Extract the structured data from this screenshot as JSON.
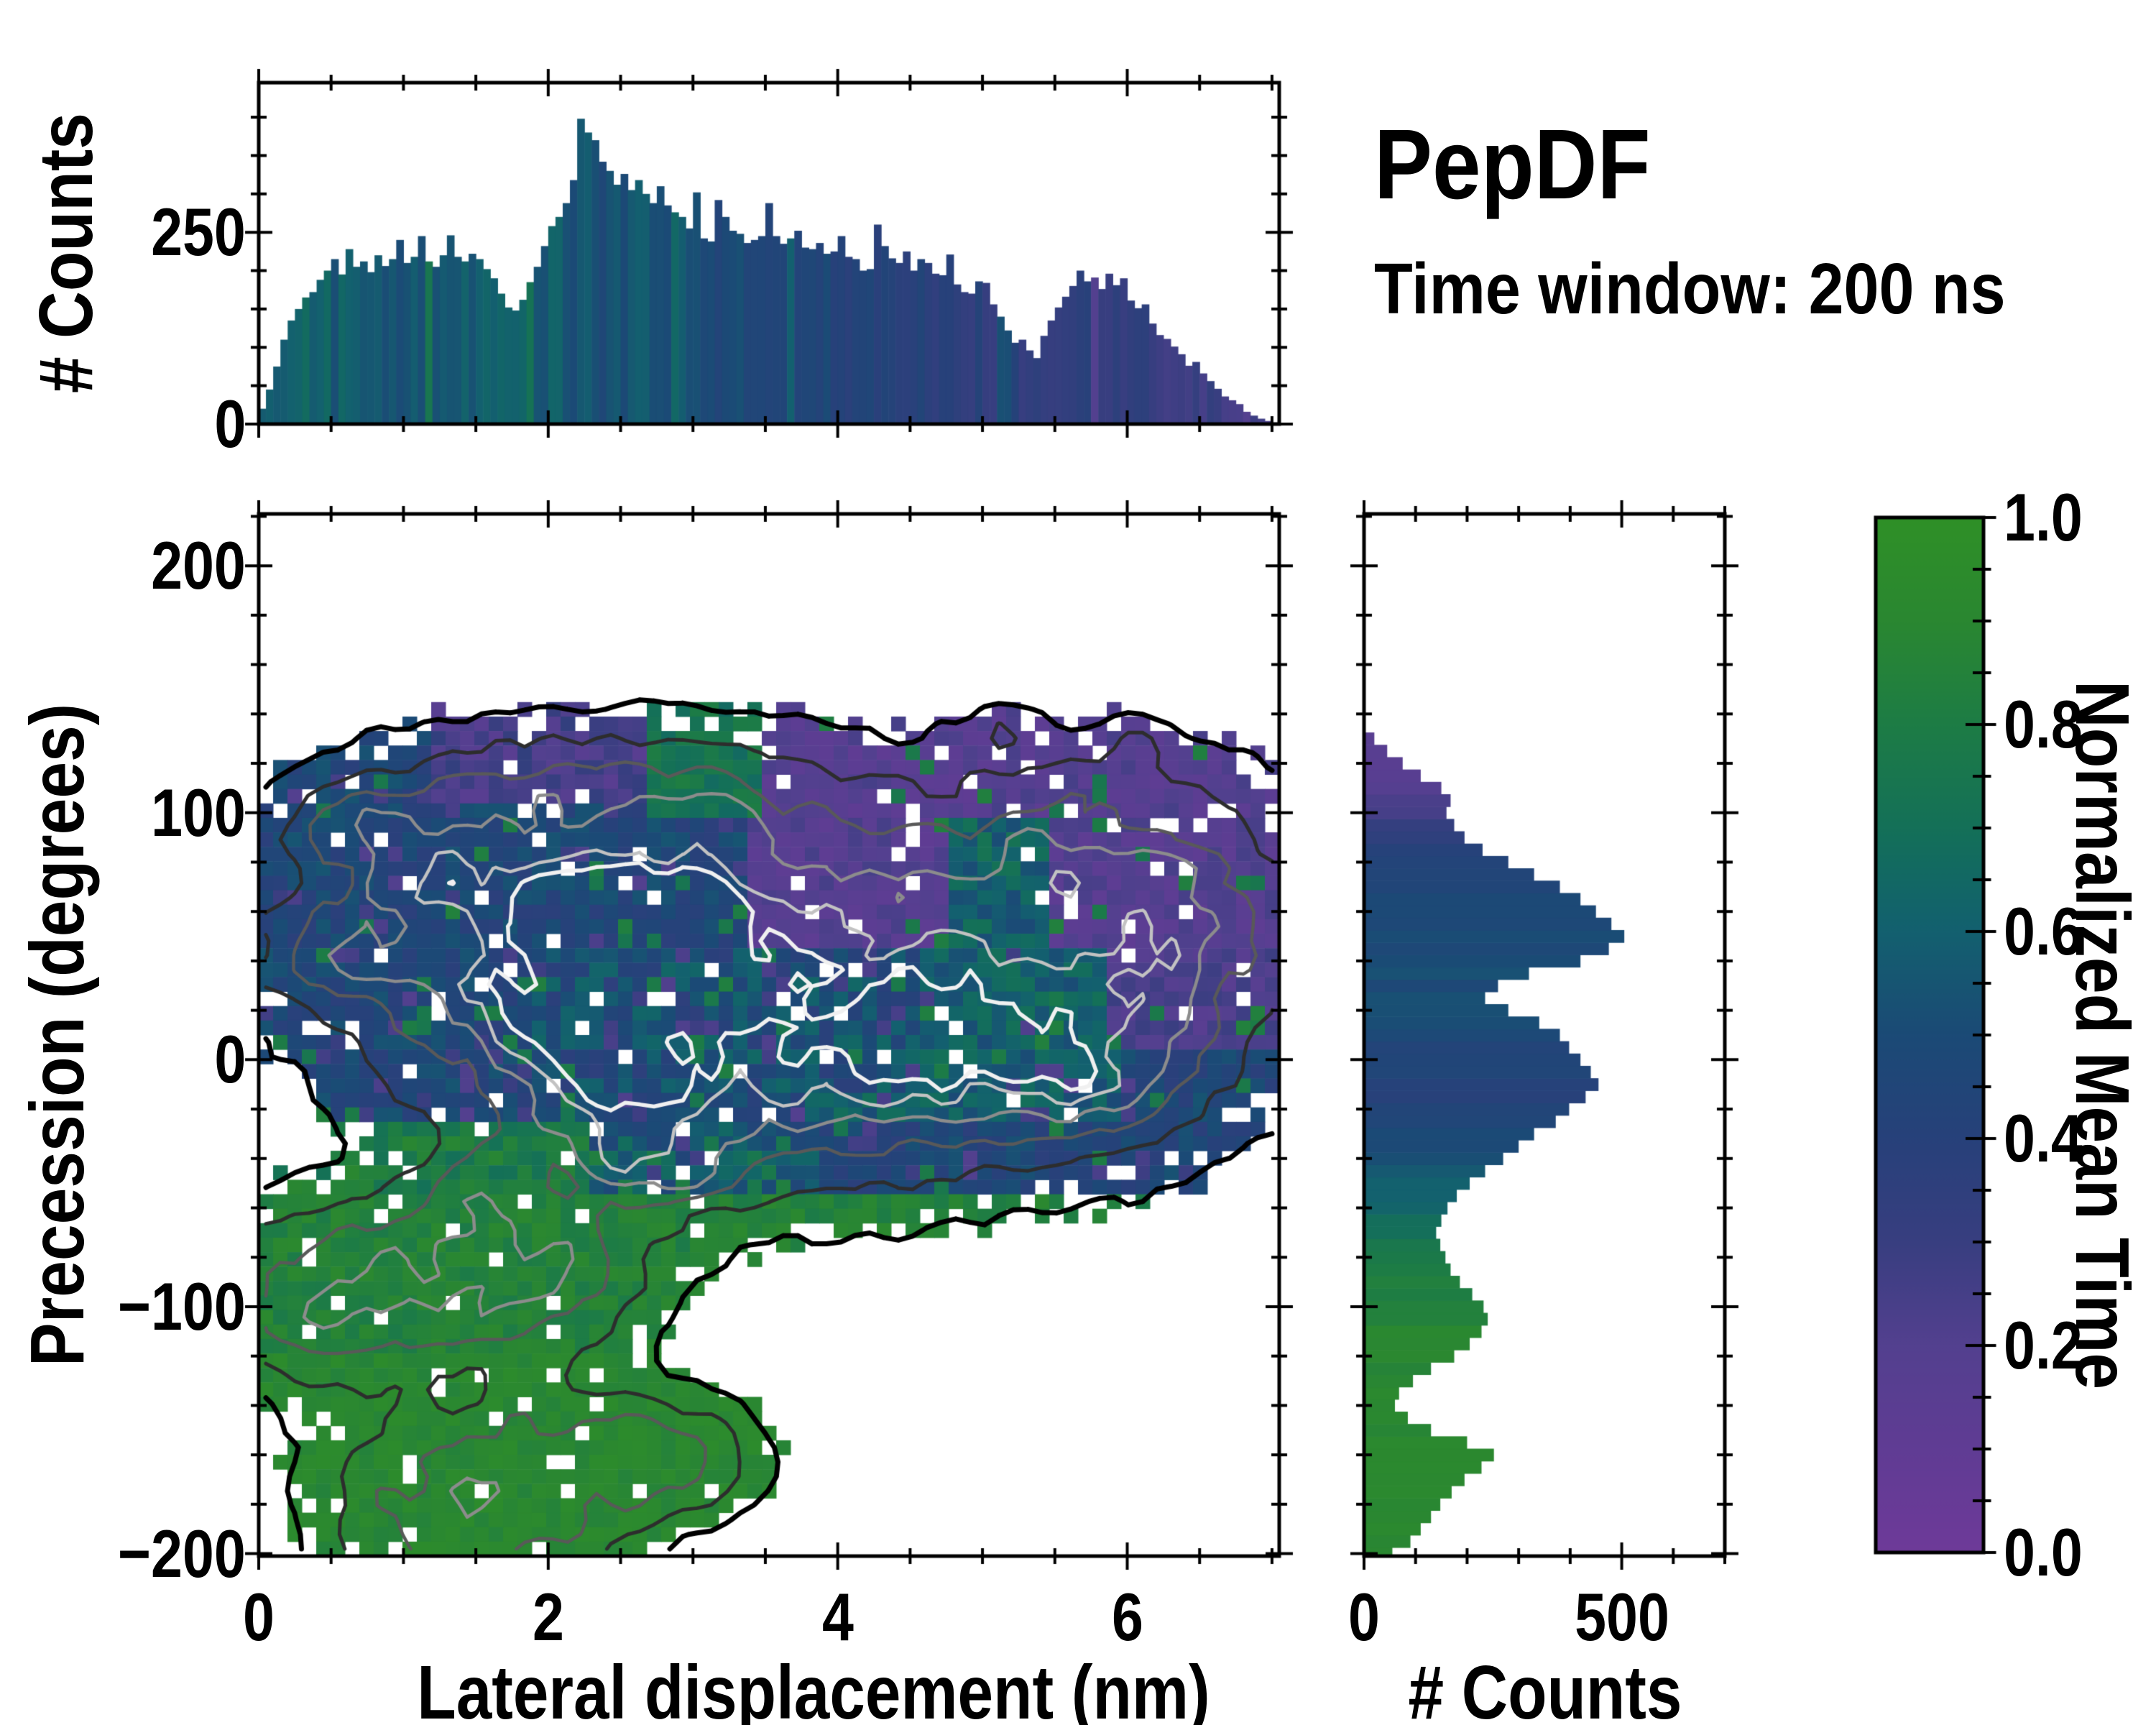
{
  "title": {
    "main": "PepDF",
    "subtitle": "Time window: 200 ns"
  },
  "labels": {
    "top_y_axis": "# Counts",
    "main_y_axis": "Precession (degrees)",
    "main_x_axis": "Lateral displacement (nm)",
    "right_x_axis": "# Counts",
    "colorbar_axis": "Normalized Mean Time"
  },
  "colors": {
    "background": "#ffffff",
    "axis": "#000000",
    "contour_levels": [
      "#000000",
      "#2d2d2d",
      "#595959",
      "#8c8c8c",
      "#c2c2c2",
      "#f0f0f0"
    ]
  },
  "colormap": {
    "name": "purple-blue-green (Normalized Mean Time)",
    "stops": [
      [
        0.0,
        "#6e3a99"
      ],
      [
        0.1,
        "#603c94"
      ],
      [
        0.2,
        "#53408f"
      ],
      [
        0.3,
        "#383e80"
      ],
      [
        0.4,
        "#27417a"
      ],
      [
        0.5,
        "#1b4a76"
      ],
      [
        0.55,
        "#175572"
      ],
      [
        0.6,
        "#13606f"
      ],
      [
        0.65,
        "#126864"
      ],
      [
        0.7,
        "#147058"
      ],
      [
        0.75,
        "#19764f"
      ],
      [
        0.8,
        "#1d7c45"
      ],
      [
        0.85,
        "#24823b"
      ],
      [
        0.9,
        "#2a8731"
      ],
      [
        1.0,
        "#2f9027"
      ]
    ]
  },
  "chart_data": [
    {
      "id": "top_histogram",
      "type": "bar",
      "title": "",
      "xlabel": "Lateral displacement (nm)",
      "ylabel": "# Counts",
      "x_range": [
        0,
        7.05
      ],
      "y_range": [
        0,
        445
      ],
      "bin_width": 0.05,
      "x_ticks_major": [
        0,
        2,
        4,
        6
      ],
      "x_tick_labels": [
        "0",
        "2",
        "4",
        "6"
      ],
      "x_minor_step": 0.5,
      "y_ticks_major": [
        0,
        250
      ],
      "y_tick_labels": [
        "0",
        "250"
      ],
      "y_minor_step": 50,
      "values": [
        20,
        45,
        75,
        110,
        135,
        150,
        165,
        172,
        188,
        200,
        215,
        195,
        228,
        205,
        212,
        198,
        220,
        206,
        215,
        240,
        210,
        218,
        245,
        212,
        205,
        220,
        246,
        218,
        212,
        222,
        215,
        202,
        190,
        170,
        152,
        148,
        162,
        185,
        205,
        232,
        258,
        270,
        288,
        318,
        398,
        380,
        370,
        342,
        330,
        312,
        326,
        305,
        318,
        300,
        288,
        310,
        285,
        276,
        270,
        255,
        302,
        242,
        238,
        292,
        270,
        252,
        248,
        236,
        240,
        245,
        288,
        245,
        235,
        242,
        252,
        230,
        228,
        236,
        222,
        225,
        245,
        218,
        215,
        200,
        202,
        260,
        232,
        216,
        210,
        225,
        200,
        215,
        210,
        196,
        194,
        221,
        182,
        172,
        170,
        186,
        184,
        156,
        140,
        122,
        106,
        110,
        96,
        86,
        115,
        135,
        152,
        166,
        180,
        200,
        186,
        191,
        176,
        196,
        181,
        190,
        161,
        151,
        156,
        131,
        116,
        111,
        101,
        91,
        76,
        81,
        66,
        56,
        46,
        36,
        31,
        26,
        16,
        11,
        7,
        4,
        2
      ],
      "mean_time_profile": [
        [
          0,
          0.63
        ],
        [
          0.5,
          0.6
        ],
        [
          1.0,
          0.56
        ],
        [
          1.5,
          0.58
        ],
        [
          2.0,
          0.57
        ],
        [
          2.5,
          0.55
        ],
        [
          3.0,
          0.53
        ],
        [
          3.5,
          0.48
        ],
        [
          4.0,
          0.44
        ],
        [
          4.5,
          0.4
        ],
        [
          5.0,
          0.37
        ],
        [
          5.5,
          0.35
        ],
        [
          6.0,
          0.32
        ],
        [
          6.5,
          0.28
        ],
        [
          7.05,
          0.22
        ]
      ],
      "color_jitter": 0.06
    },
    {
      "id": "main_map",
      "type": "heatmap",
      "subtype": "2d-histogram-with-contours",
      "xlabel": "Lateral displacement (nm)",
      "ylabel": "Precession (degrees)",
      "x_range": [
        0,
        7.1
      ],
      "y_range": [
        -201,
        221
      ],
      "x_ticks_major": [
        0,
        2,
        4,
        6
      ],
      "x_tick_labels": [
        "0",
        "2",
        "4",
        "6"
      ],
      "x_minor_step": 0.5,
      "y_ticks_major": [
        200,
        100,
        0,
        -100,
        -200
      ],
      "y_tick_labels": [
        "200",
        "100",
        "0",
        "−100",
        "−200"
      ],
      "y_minor_step": 20,
      "grid": {
        "nx": 71,
        "ny": 72,
        "dx": 0.1,
        "dy": 5.861
      },
      "fill_threshold": 0.55,
      "hole_probability": 0.05,
      "noise": [
        0.7,
        0.6
      ],
      "contour_levels": [
        0.55,
        0.95,
        1.35,
        1.75,
        2.15,
        2.5
      ],
      "contour_widths": [
        7,
        5,
        4.5,
        4.5,
        4.5,
        5.5
      ],
      "density_blobs": [
        [
          1.0,
          55,
          1.05,
          48,
          1.05
        ],
        [
          2.6,
          50,
          1.15,
          55,
          1.15
        ],
        [
          4.2,
          35,
          1.5,
          62,
          0.95
        ],
        [
          5.9,
          78,
          1.05,
          40,
          0.9
        ],
        [
          2.9,
          -18,
          1.1,
          38,
          0.85
        ],
        [
          5.0,
          8,
          1.05,
          42,
          0.95
        ],
        [
          6.35,
          30,
          0.75,
          55,
          0.75
        ],
        [
          1.7,
          108,
          0.8,
          18,
          0.5
        ],
        [
          3.1,
          108,
          0.55,
          16,
          0.55
        ],
        [
          2.35,
          54,
          0.42,
          15,
          1.25
        ],
        [
          2.85,
          58,
          0.5,
          13,
          1.15
        ],
        [
          3.2,
          28,
          0.3,
          10,
          0.85
        ],
        [
          2.0,
          16,
          0.3,
          10,
          0.9
        ],
        [
          2.55,
          -8,
          0.33,
          11,
          1.0
        ],
        [
          2.5,
          -33,
          0.25,
          9,
          0.75
        ],
        [
          2.8,
          -48,
          0.28,
          9,
          0.75
        ],
        [
          4.65,
          8,
          0.4,
          13,
          0.95
        ],
        [
          5.6,
          -3,
          0.45,
          13,
          0.85
        ],
        [
          0.55,
          40,
          0.3,
          12,
          0.65
        ],
        [
          0.6,
          96,
          0.33,
          11,
          0.65
        ],
        [
          1.15,
          72,
          0.3,
          10,
          0.55
        ],
        [
          5.15,
          133,
          0.12,
          5,
          0.7
        ],
        [
          6.1,
          127,
          0.1,
          5,
          0.65
        ],
        [
          0.8,
          -80,
          0.8,
          24,
          1.05
        ],
        [
          1.65,
          -98,
          0.75,
          22,
          0.95
        ],
        [
          0.35,
          -108,
          0.45,
          22,
          0.9
        ],
        [
          2.1,
          -80,
          0.5,
          18,
          0.6
        ],
        [
          1.62,
          -50,
          0.25,
          14,
          0.55
        ],
        [
          1.6,
          -163,
          0.95,
          26,
          1.05
        ],
        [
          2.55,
          -158,
          0.65,
          20,
          0.8
        ],
        [
          1.05,
          -190,
          0.6,
          18,
          0.85
        ],
        [
          2.0,
          -195,
          0.5,
          14,
          0.6
        ],
        [
          3.1,
          -165,
          0.4,
          16,
          0.6
        ]
      ],
      "mean_time_rules": [
        [
          -999,
          999,
          -999,
          -120,
          0.9,
          0.05,
          0.0,
          0.0
        ],
        [
          -999,
          999,
          -120,
          -52,
          0.85,
          0.07,
          0.0,
          0.0
        ],
        [
          -999,
          2.3,
          -52,
          -24,
          0.8,
          0.1,
          0.0,
          0.0
        ],
        [
          -999,
          3.9,
          -52,
          -26,
          0.55,
          0.13,
          0.05,
          0.05
        ],
        [
          2.75,
          3.55,
          95,
          999,
          0.74,
          0.08,
          0.0,
          0.0
        ],
        [
          4.78,
          5.55,
          44,
          96,
          0.62,
          0.12,
          0.0,
          0.0
        ],
        [
          3.45,
          999,
          46,
          999,
          0.18,
          0.07,
          0.05,
          0.0
        ],
        [
          5.95,
          999,
          5,
          999,
          0.22,
          0.08,
          0.04,
          0.0
        ],
        [
          1.25,
          2.7,
          106,
          999,
          0.25,
          0.1,
          0.0,
          0.0
        ],
        [
          1.95,
          4.6,
          -14,
          44,
          0.5,
          0.15,
          0.04,
          0.1
        ],
        [
          3.8,
          5.95,
          -24,
          46,
          0.6,
          0.1,
          0.04,
          0.06
        ],
        [
          -999,
          999,
          -999,
          999,
          0.46,
          0.09,
          0.05,
          0.06
        ]
      ]
    },
    {
      "id": "right_histogram",
      "type": "bar",
      "orientation": "horizontal",
      "xlabel": "# Counts",
      "ylabel": "Precession (degrees)",
      "x_range": [
        0,
        700
      ],
      "y_range": [
        -201,
        221
      ],
      "bin_width_deg": 5,
      "first_bin_center": -210,
      "x_ticks_major": [
        0,
        500
      ],
      "x_tick_labels": [
        "0",
        "500"
      ],
      "x_minor_step": 100,
      "y_minor_step": 20,
      "y_ticks_major": [
        200,
        100,
        0,
        -100,
        -200
      ],
      "values": [
        15,
        30,
        55,
        90,
        110,
        130,
        148,
        170,
        195,
        228,
        252,
        200,
        130,
        85,
        60,
        68,
        95,
        130,
        175,
        205,
        228,
        240,
        232,
        210,
        186,
        168,
        158,
        148,
        140,
        150,
        162,
        180,
        205,
        235,
        270,
        300,
        330,
        372,
        398,
        430,
        455,
        440,
        420,
        398,
        380,
        340,
        280,
        235,
        260,
        320,
        420,
        475,
        505,
        480,
        450,
        420,
        380,
        330,
        280,
        230,
        195,
        175,
        160,
        168,
        150,
        110,
        75,
        45,
        20
      ],
      "mean_time_profile": [
        [
          -210,
          0.92
        ],
        [
          -150,
          0.9
        ],
        [
          -110,
          0.88
        ],
        [
          -90,
          0.82
        ],
        [
          -70,
          0.72
        ],
        [
          -55,
          0.62
        ],
        [
          -35,
          0.52
        ],
        [
          -15,
          0.4
        ],
        [
          0,
          0.44
        ],
        [
          20,
          0.5
        ],
        [
          40,
          0.5
        ],
        [
          60,
          0.48
        ],
        [
          80,
          0.45
        ],
        [
          95,
          0.3
        ],
        [
          110,
          0.2
        ],
        [
          130,
          0.14
        ]
      ],
      "color_jitter": 0.03
    },
    {
      "id": "colorbar",
      "type": "colorbar",
      "label": "Normalized Mean Time",
      "range": [
        0.0,
        1.0
      ],
      "ticks_major": [
        0.0,
        0.2,
        0.4,
        0.6,
        0.8,
        1.0
      ],
      "tick_labels": [
        "0.0",
        "0.2",
        "0.4",
        "0.6",
        "0.8",
        "1.0"
      ],
      "minor_step": 0.05
    }
  ]
}
